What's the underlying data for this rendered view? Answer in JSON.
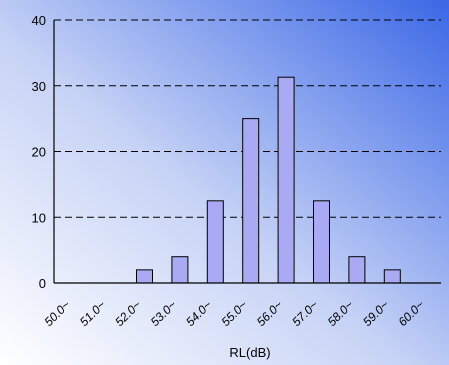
{
  "chart_data": {
    "type": "bar",
    "xlabel": "RL(dB)",
    "ylabel": "",
    "ylim": [
      0,
      40
    ],
    "yticks": [
      "0",
      "10",
      "20",
      "30",
      "40"
    ],
    "grid": true,
    "categories": [
      "50.0~",
      "51.0~",
      "52.0~",
      "53.0~",
      "54.0~",
      "55.0~",
      "56.0~",
      "57.0~",
      "58.0~",
      "59.0~",
      "60.0~"
    ],
    "bars": [
      {
        "label": "52.0~",
        "value": 2
      },
      {
        "label": "53.0~",
        "value": 4
      },
      {
        "label": "54.0~",
        "value": 12.5
      },
      {
        "label": "55.0~",
        "value": 25
      },
      {
        "label": "56.0~",
        "value": 31.3
      },
      {
        "label": "57.0~",
        "value": 12.5
      },
      {
        "label": "58.0~",
        "value": 4
      },
      {
        "label": "59.0~",
        "value": 2
      }
    ],
    "colors": {
      "bar_fill": "#a9a9f4",
      "bar_stroke": "#000000",
      "bg_light": "#ffffff",
      "bg_dark": "#3a67e6"
    }
  }
}
